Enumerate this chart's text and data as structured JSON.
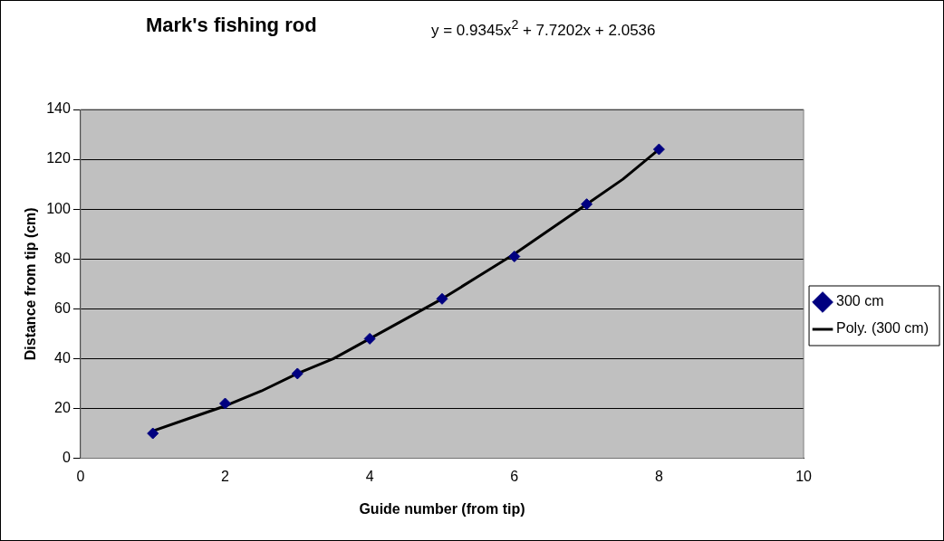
{
  "chart_data": {
    "type": "scatter",
    "title": "Mark's fishing rod",
    "xlabel": "Guide number (from tip)",
    "ylabel": "Distance from tip (cm)",
    "annotations": [
      "y = 0.9345x$^{2}$ + 7.7202x + 2.0536"
    ],
    "x": [
      1,
      2,
      3,
      4,
      5,
      6,
      7,
      8
    ],
    "series": [
      {
        "name": "300 cm",
        "color": "#000080",
        "marker": "diamond",
        "values": [
          10,
          22,
          34,
          48,
          64,
          81,
          102,
          124
        ]
      },
      {
        "name": "Poly. (300 cm)",
        "type": "line",
        "color": "#000000",
        "marker": "none",
        "x": [
          1,
          1.5,
          2,
          2.5,
          3,
          3.5,
          4,
          4.5,
          5,
          5.5,
          6,
          6.5,
          7,
          7.5,
          8
        ],
        "values": [
          11,
          16,
          21,
          27,
          34,
          40,
          48,
          56,
          64,
          73,
          82,
          92,
          102,
          112,
          124
        ]
      }
    ],
    "xlim": [
      0,
      10
    ],
    "xticks": [
      0,
      2,
      4,
      6,
      8,
      10
    ],
    "ylim": [
      0,
      140
    ],
    "yticks": [
      0,
      20,
      40,
      60,
      80,
      100,
      120,
      140
    ],
    "grid": "y",
    "legend": "right"
  }
}
